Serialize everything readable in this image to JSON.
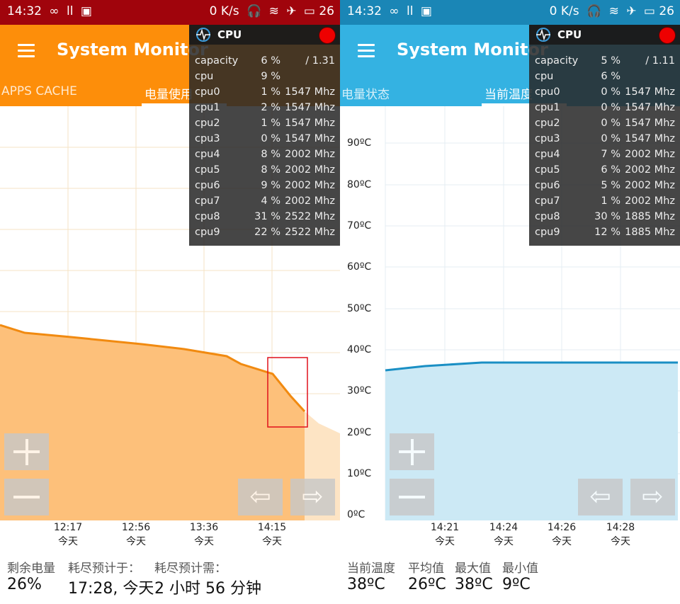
{
  "left": {
    "status": {
      "time": "14:32",
      "icons": [
        "∞",
        "ll",
        "▣"
      ],
      "speed": "0 K/s",
      "battery": "26"
    },
    "app_title": "System Monitor",
    "tabs": [
      {
        "label": "APPS CACHE",
        "active": false
      },
      {
        "label": "电量使用",
        "active": true
      }
    ],
    "chart": {
      "x_labels": [
        {
          "time": "12:17",
          "day": "今天"
        },
        {
          "time": "12:56",
          "day": "今天"
        },
        {
          "time": "13:36",
          "day": "今天"
        },
        {
          "time": "14:15",
          "day": "今天"
        }
      ],
      "line_color": "#f18a10",
      "fill_color": "#fdc07a",
      "projection_fill": "#fde4c4",
      "highlight_color": "#e0111b"
    },
    "info": {
      "labels": [
        "剩余电量",
        "耗尽预计于：",
        "耗尽预计需："
      ],
      "values": [
        "26%",
        "17:28, 今天",
        "2 小时 56 分钟"
      ]
    },
    "cpu": {
      "title": "CPU",
      "ghost_top": "",
      "rows": [
        {
          "name": "capacity",
          "pct": "6 %",
          "freq": "/ 1.31"
        },
        {
          "name": "cpu",
          "pct": "9 %",
          "freq": ""
        },
        {
          "name": "cpu0",
          "pct": "1 %",
          "freq": "1547 Mhz"
        },
        {
          "name": "cpu1",
          "pct": "2 %",
          "freq": "1547 Mhz"
        },
        {
          "name": "cpu2",
          "pct": "1 %",
          "freq": "1547 Mhz"
        },
        {
          "name": "cpu3",
          "pct": "0 %",
          "freq": "1547 Mhz"
        },
        {
          "name": "cpu4",
          "pct": "8 %",
          "freq": "2002 Mhz"
        },
        {
          "name": "cpu5",
          "pct": "8 %",
          "freq": "2002 Mhz"
        },
        {
          "name": "cpu6",
          "pct": "9 %",
          "freq": "2002 Mhz"
        },
        {
          "name": "cpu7",
          "pct": "4 %",
          "freq": "2002 Mhz"
        },
        {
          "name": "cpu8",
          "pct": "31 %",
          "freq": "2522 Mhz"
        },
        {
          "name": "cpu9",
          "pct": "22 %",
          "freq": "2522 Mhz"
        }
      ]
    }
  },
  "right": {
    "status": {
      "time": "14:32",
      "icons": [
        "∞",
        "ll",
        "▣"
      ],
      "speed": "0 K/s",
      "battery": "26"
    },
    "app_title": "System Monitor",
    "tabs": [
      {
        "label": "电量状态",
        "active": false
      },
      {
        "label": "当前温度",
        "active": true
      }
    ],
    "chart": {
      "y_labels": [
        "90ºC",
        "80ºC",
        "70ºC",
        "60ºC",
        "50ºC",
        "40ºC",
        "30ºC",
        "20ºC",
        "10ºC",
        "0ºC"
      ],
      "x_labels": [
        {
          "time": "14:21",
          "day": "今天"
        },
        {
          "time": "14:24",
          "day": "今天"
        },
        {
          "time": "14:26",
          "day": "今天"
        },
        {
          "time": "14:28",
          "day": "今天"
        }
      ],
      "line_color": "#1a8fc4",
      "fill_color": "#cce9f5"
    },
    "info": {
      "labels": [
        "当前温度",
        "平均值",
        "最大值",
        "最小值"
      ],
      "values": [
        "38ºC",
        "26ºC",
        "38ºC",
        "9ºC"
      ]
    },
    "cpu": {
      "title": "CPU",
      "rows": [
        {
          "name": "capacity",
          "pct": "5 %",
          "freq": "/ 1.11"
        },
        {
          "name": "cpu",
          "pct": "6 %",
          "freq": ""
        },
        {
          "name": "cpu0",
          "pct": "0 %",
          "freq": "1547 Mhz"
        },
        {
          "name": "cpu1",
          "pct": "0 %",
          "freq": "1547 Mhz"
        },
        {
          "name": "cpu2",
          "pct": "0 %",
          "freq": "1547 Mhz"
        },
        {
          "name": "cpu3",
          "pct": "0 %",
          "freq": "1547 Mhz"
        },
        {
          "name": "cpu4",
          "pct": "7 %",
          "freq": "2002 Mhz"
        },
        {
          "name": "cpu5",
          "pct": "6 %",
          "freq": "2002 Mhz"
        },
        {
          "name": "cpu6",
          "pct": "5 %",
          "freq": "2002 Mhz"
        },
        {
          "name": "cpu7",
          "pct": "1 %",
          "freq": "2002 Mhz"
        },
        {
          "name": "cpu8",
          "pct": "30 %",
          "freq": "1885 Mhz"
        },
        {
          "name": "cpu9",
          "pct": "12 %",
          "freq": "1885 Mhz"
        }
      ]
    }
  },
  "icons": {
    "menu": "menu-icon",
    "zoom_in": "plus-icon",
    "zoom_out": "minus-icon",
    "prev": "arrow-left-icon",
    "next": "arrow-right-icon",
    "record": "record-icon"
  }
}
